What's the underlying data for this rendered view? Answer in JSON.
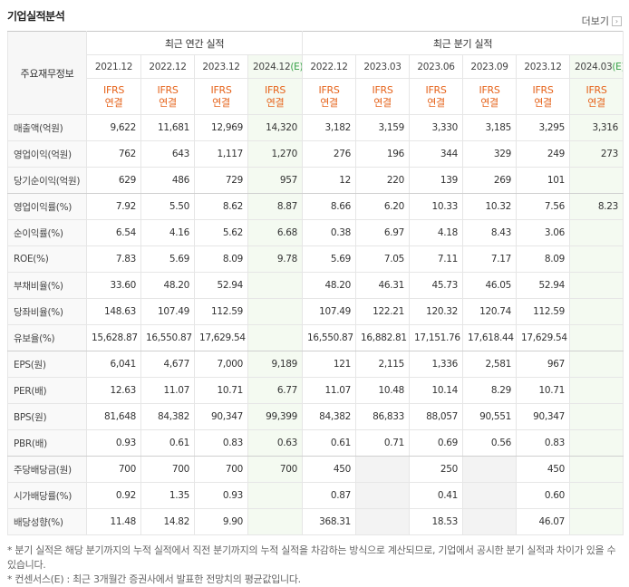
{
  "header": {
    "title": "기업실적분석",
    "more": "더보기"
  },
  "table": {
    "corner": "주요재무정보",
    "groups": [
      "최근 연간 실적",
      "최근 분기 실적"
    ],
    "columns": [
      {
        "period": "2021.12",
        "standard": "IFRS",
        "basis": "연결"
      },
      {
        "period": "2022.12",
        "standard": "IFRS",
        "basis": "연결"
      },
      {
        "period": "2023.12",
        "standard": "IFRS",
        "basis": "연결"
      },
      {
        "period": "2024.12",
        "estimate": "(E)",
        "standard": "IFRS",
        "basis": "연결"
      },
      {
        "period": "2022.12",
        "standard": "IFRS",
        "basis": "연결"
      },
      {
        "period": "2023.03",
        "standard": "IFRS",
        "basis": "연결"
      },
      {
        "period": "2023.06",
        "standard": "IFRS",
        "basis": "연결"
      },
      {
        "period": "2023.09",
        "standard": "IFRS",
        "basis": "연결"
      },
      {
        "period": "2023.12",
        "standard": "IFRS",
        "basis": "연결"
      },
      {
        "period": "2024.03",
        "estimate": "(E)",
        "standard": "IFRS",
        "basis": "연결"
      }
    ],
    "rows": [
      {
        "label": "매출액(억원)",
        "values": [
          "9,622",
          "11,681",
          "12,969",
          "14,320",
          "3,182",
          "3,159",
          "3,330",
          "3,185",
          "3,295",
          "3,316"
        ]
      },
      {
        "label": "영업이익(억원)",
        "values": [
          "762",
          "643",
          "1,117",
          "1,270",
          "276",
          "196",
          "344",
          "329",
          "249",
          "273"
        ]
      },
      {
        "label": "당기순이익(억원)",
        "values": [
          "629",
          "486",
          "729",
          "957",
          "12",
          "220",
          "139",
          "269",
          "101",
          null
        ]
      },
      {
        "label": "영업이익률(%)",
        "values": [
          "7.92",
          "5.50",
          "8.62",
          "8.87",
          "8.66",
          "6.20",
          "10.33",
          "10.32",
          "7.56",
          "8.23"
        ]
      },
      {
        "label": "순이익률(%)",
        "values": [
          "6.54",
          "4.16",
          "5.62",
          "6.68",
          "0.38",
          "6.97",
          "4.18",
          "8.43",
          "3.06",
          null
        ]
      },
      {
        "label": "ROE(%)",
        "values": [
          "7.83",
          "5.69",
          "8.09",
          "9.78",
          "5.69",
          "7.05",
          "7.11",
          "7.17",
          "8.09",
          null
        ]
      },
      {
        "label": "부채비율(%)",
        "values": [
          "33.60",
          "48.20",
          "52.94",
          null,
          "48.20",
          "46.31",
          "45.73",
          "46.05",
          "52.94",
          null
        ]
      },
      {
        "label": "당좌비율(%)",
        "values": [
          "148.63",
          "107.49",
          "112.59",
          null,
          "107.49",
          "122.21",
          "120.32",
          "120.74",
          "112.59",
          null
        ]
      },
      {
        "label": "유보율(%)",
        "values": [
          "15,628.87",
          "16,550.87",
          "17,629.54",
          null,
          "16,550.87",
          "16,882.81",
          "17,151.76",
          "17,618.44",
          "17,629.54",
          null
        ]
      },
      {
        "label": "EPS(원)",
        "values": [
          "6,041",
          "4,677",
          "7,000",
          "9,189",
          "121",
          "2,115",
          "1,336",
          "2,581",
          "967",
          null
        ]
      },
      {
        "label": "PER(배)",
        "values": [
          "12.63",
          "11.07",
          "10.71",
          "6.77",
          "11.07",
          "10.48",
          "10.14",
          "8.29",
          "10.71",
          null
        ]
      },
      {
        "label": "BPS(원)",
        "values": [
          "81,648",
          "84,382",
          "90,347",
          "99,399",
          "84,382",
          "86,833",
          "88,057",
          "90,551",
          "90,347",
          null
        ]
      },
      {
        "label": "PBR(배)",
        "values": [
          "0.93",
          "0.61",
          "0.83",
          "0.63",
          "0.61",
          "0.71",
          "0.69",
          "0.56",
          "0.83",
          null
        ]
      },
      {
        "label": "주당배당금(원)",
        "values": [
          "700",
          "700",
          "700",
          "700",
          "450",
          null,
          "250",
          null,
          "450",
          null
        ]
      },
      {
        "label": "시가배당률(%)",
        "values": [
          "0.92",
          "1.35",
          "0.93",
          null,
          "0.87",
          null,
          "0.41",
          null,
          "0.60",
          null
        ]
      },
      {
        "label": "배당성향(%)",
        "values": [
          "11.48",
          "14.82",
          "9.90",
          null,
          "368.31",
          null,
          "18.53",
          null,
          "46.07",
          null
        ]
      }
    ]
  },
  "notes": [
    "* 분기 실적은 해당 분기까지의 누적 실적에서 직전 분기까지의 누적 실적을 차감하는 방식으로 계산되므로, 기업에서 공시한 분기 실적과 차이가 있을 수 있습니다.",
    "* 컨센서스(E) : 최근 3개월간 증권사에서 발표한 전망치의 평균값입니다."
  ]
}
